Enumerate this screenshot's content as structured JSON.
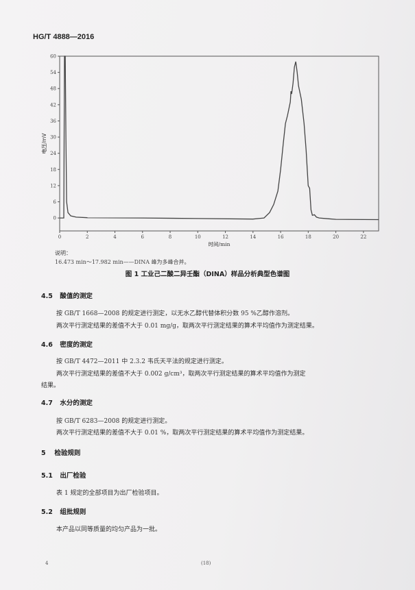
{
  "header": {
    "standard_id": "HG/T 4888—2016"
  },
  "chart_data": {
    "type": "line",
    "title": "",
    "xlabel": "时间/min",
    "ylabel": "电压/mV",
    "xlim": [
      0,
      23.1
    ],
    "ylim": [
      -4.8,
      60
    ],
    "xticks": [
      0,
      2,
      4,
      6,
      8,
      10,
      12,
      14,
      16,
      18,
      20,
      22
    ],
    "yticks": [
      0,
      6,
      12,
      18,
      24,
      30,
      36,
      42,
      48,
      54,
      60
    ],
    "grid": false,
    "series": [
      {
        "x": [
          0,
          0.3,
          0.35,
          0.4,
          0.45,
          0.5,
          0.6,
          0.8,
          1.2,
          2,
          6,
          10,
          14,
          14.8,
          15.2,
          15.5,
          15.8,
          16.0,
          16.2,
          16.35,
          16.5,
          16.7,
          16.75,
          16.8,
          16.85,
          16.9,
          17.0,
          17.1,
          17.2,
          17.3,
          17.5,
          17.7,
          17.85,
          18.0,
          18.1,
          18.2,
          18.3,
          18.45,
          18.6,
          18.8,
          19.5,
          20,
          23.1
        ],
        "y": [
          0,
          0,
          60,
          60,
          30,
          6,
          2,
          0.8,
          0.3,
          0.1,
          0,
          -0.2,
          -0.4,
          0,
          2,
          5,
          10,
          18,
          28,
          35,
          38,
          43,
          47,
          46,
          48,
          50,
          56,
          58,
          54,
          49,
          44,
          35,
          25,
          12,
          11,
          3,
          1,
          1.2,
          0.3,
          0,
          -0.3,
          -0.5,
          -0.6
        ]
      }
    ],
    "line_color": "#444444"
  },
  "figure": {
    "note_label": "说明：",
    "note_text": "16.473 min～17.982 min——DINA 峰为多峰合并。",
    "caption": "图 1   工业己二酸二异壬酯（DINA）样品分析典型色谱图"
  },
  "sections": [
    {
      "num": "4.5",
      "title": "酸值的测定",
      "lines": [
        "按 GB/T 1668—2008 的规定进行测定，以无水乙醇代替体积分数 95 %乙醇作溶剂。",
        "两次平行测定结果的差值不大于 0.01 mg/g，取两次平行测定结果的算术平均值作为测定结果。"
      ]
    },
    {
      "num": "4.6",
      "title": "密度的测定",
      "lines": [
        "按 GB/T 4472—2011 中 2.3.2 韦氏天平法的规定进行测定。",
        "两次平行测定结果的差值不大于 0.002 g/cm³，取两次平行测定结果的算术平均值作为测定",
        "结果。"
      ]
    },
    {
      "num": "4.7",
      "title": "水分的测定",
      "lines": [
        "按 GB/T 6283—2008 的规定进行测定。",
        "两次平行测定结果的差值不大于 0.01 %，取两次平行测定结果的算术平均值作为测定结果。"
      ]
    },
    {
      "num": "5",
      "title": "检验规则"
    },
    {
      "num": "5.1",
      "title": "出厂检验",
      "lines": [
        "表 1 规定的全部项目为出厂检验项目。"
      ]
    },
    {
      "num": "5.2",
      "title": "组批规则",
      "lines": [
        "本产品以同等质量的均匀产品为一批。"
      ]
    }
  ],
  "footer": {
    "page_number": "4",
    "sheet_number": "(18)"
  }
}
